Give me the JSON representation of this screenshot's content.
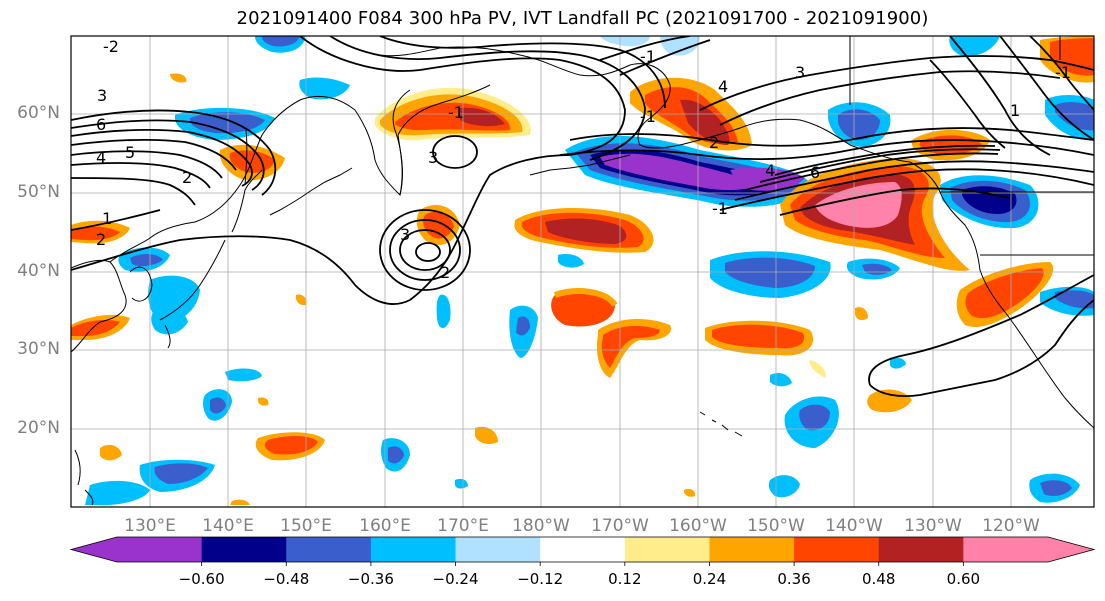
{
  "title": "2021091400 F084 300 hPa PV, IVT Landfall PC (2021091700 - 2021091900)",
  "lat_labels": [
    "60°N",
    "50°N",
    "40°N",
    "30°N",
    "20°N"
  ],
  "lon_labels": [
    "130°E",
    "140°E",
    "150°E",
    "160°E",
    "170°E",
    "180°W",
    "170°W",
    "160°W",
    "150°W",
    "140°W",
    "130°W",
    "120°W"
  ],
  "contour_labels": [
    "-2",
    "3",
    "6",
    "4",
    "5",
    "2",
    "1",
    "2",
    "-1",
    "3",
    "2",
    "3",
    "4",
    "3",
    "1",
    "-1",
    "-1",
    "4",
    "6",
    "-1",
    "-1",
    "2"
  ],
  "colorbar": {
    "ticks": [
      "−0.60",
      "−0.48",
      "−0.36",
      "−0.24",
      "−0.12",
      "0.12",
      "0.24",
      "0.36",
      "0.48",
      "0.60"
    ],
    "colors": [
      "#9933cc",
      "#00008b",
      "#3a5fcd",
      "#00bfff",
      "#b0e2ff",
      "#ffffff",
      "#ffec8b",
      "#ffa500",
      "#ff4500",
      "#b22222",
      "#ff82ab"
    ]
  }
}
